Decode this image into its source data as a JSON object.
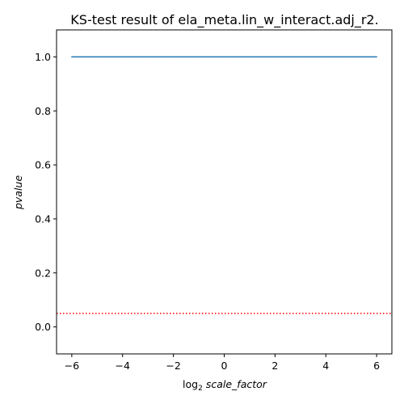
{
  "chart_data": {
    "type": "line",
    "title": "KS-test result of ela_meta.lin_w_interact.adj_r2.",
    "xlabel_prefix": "log",
    "xlabel_subscript": "2",
    "xlabel_var": "scale_factor",
    "ylabel": "pvalue",
    "xlim": [
      -6.6,
      6.6
    ],
    "ylim": [
      -0.1,
      1.1
    ],
    "xticks": [
      -6,
      -4,
      -2,
      0,
      2,
      4,
      6
    ],
    "xtick_labels": [
      "−6",
      "−4",
      "−2",
      "0",
      "2",
      "4",
      "6"
    ],
    "yticks": [
      0.0,
      0.2,
      0.4,
      0.6,
      0.8,
      1.0
    ],
    "ytick_labels": [
      "0.0",
      "0.2",
      "0.4",
      "0.6",
      "0.8",
      "1.0"
    ],
    "series": [
      {
        "name": "pvalue",
        "x": [
          -6,
          -5,
          -4,
          -3,
          -2,
          -1,
          0,
          1,
          2,
          3,
          4,
          5,
          6
        ],
        "y": [
          1.0,
          1.0,
          1.0,
          1.0,
          1.0,
          1.0,
          1.0,
          1.0,
          1.0,
          1.0,
          1.0,
          1.0,
          1.0
        ],
        "color": "#1f77b4",
        "style": "solid"
      }
    ],
    "hlines": [
      {
        "name": "significance-threshold",
        "y": 0.05,
        "color": "#ff0000",
        "style": "dotted"
      }
    ],
    "grid": false
  }
}
